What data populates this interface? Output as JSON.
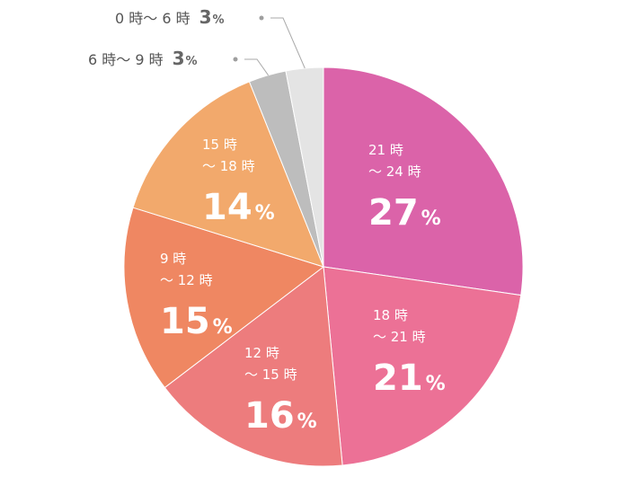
{
  "chart_data": {
    "type": "pie",
    "title": "",
    "start_angle_deg": 0,
    "direction": "clockwise",
    "slices": [
      {
        "line1": "21 時",
        "line2": "～ 24 時",
        "value": 27,
        "pct_sym": "%",
        "color": "#db63a9",
        "label_style": "inside"
      },
      {
        "line1": "18 時",
        "line2": "～ 21 時",
        "value": 21,
        "pct_sym": "%",
        "color": "#ec7196",
        "label_style": "inside"
      },
      {
        "line1": "12 時",
        "line2": "～ 15 時",
        "value": 16,
        "pct_sym": "%",
        "color": "#ed7c7d",
        "label_style": "inside"
      },
      {
        "line1": "9 時",
        "line2": "～ 12 時",
        "value": 15,
        "pct_sym": "%",
        "color": "#ef8762",
        "label_style": "inside"
      },
      {
        "line1": "15 時",
        "line2": "～ 18 時",
        "value": 14,
        "pct_sym": "%",
        "color": "#f2a96c",
        "label_style": "inside"
      },
      {
        "line1": "6 時～ 9 時",
        "line2": "",
        "value": 3,
        "pct_sym": "%",
        "color": "#bdbdbd",
        "label_style": "outside"
      },
      {
        "line1": "0 時～ 6 時",
        "line2": "",
        "value": 3,
        "pct_sym": "%",
        "color": "#e4e4e4",
        "label_style": "outside"
      }
    ]
  }
}
